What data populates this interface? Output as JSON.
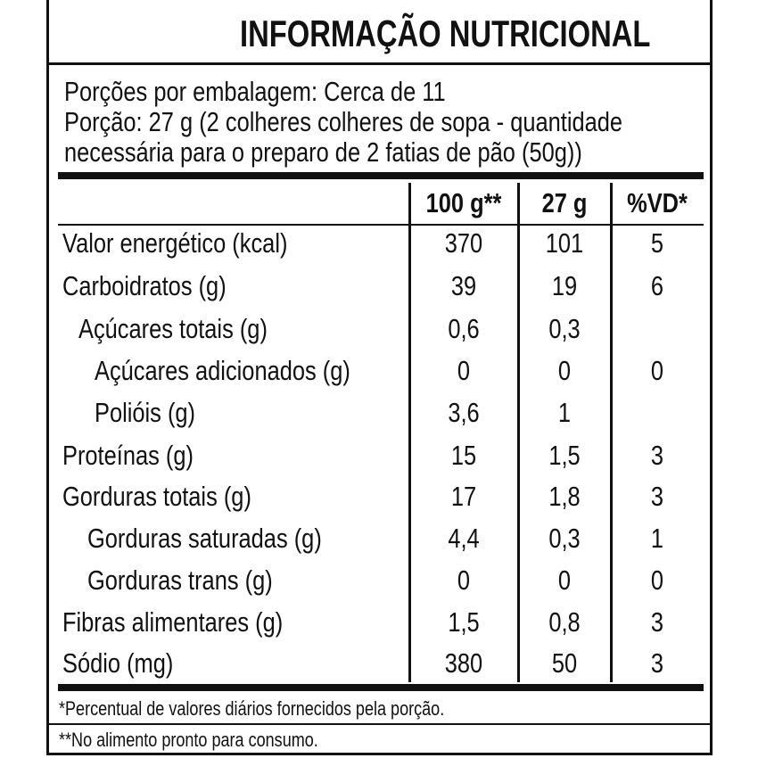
{
  "title": "INFORMAÇÃO NUTRICIONAL",
  "serving": [
    "Porções por embalagem: Cerca de 11",
    "Porção: 27 g (2 colheres colheres de sopa - quantidade",
    "necessária para o preparo de 2 fatias de pão (50g))"
  ],
  "table": {
    "header": [
      "100 g**",
      "27 g",
      "%VD*"
    ],
    "rows": [
      [
        "Valor energético (kcal)",
        "370",
        "101",
        "5"
      ],
      [
        "Carboidratos (g)",
        "39",
        "19",
        "6"
      ],
      [
        "Açúcares totais (g)",
        "0,6",
        "0,3",
        null
      ],
      [
        "Açúcares adicionados (g)",
        "0",
        "0",
        "0"
      ],
      [
        "Polióis (g)",
        "3,6",
        "1",
        null
      ],
      [
        "Proteínas (g)",
        "15",
        "1,5",
        "3"
      ],
      [
        "Gorduras totais (g)",
        "17",
        "1,8",
        "3"
      ],
      [
        "Gorduras saturadas (g)",
        "4,4",
        "0,3",
        "1"
      ],
      [
        "Gorduras trans (g)",
        "0",
        "0",
        "0"
      ],
      [
        "Fibras alimentares (g)",
        "1,5",
        "0,8",
        "3"
      ],
      [
        "Sódio (mg)",
        "380",
        "50",
        "3"
      ]
    ]
  },
  "footnotes": [
    "*Percentual de valores diários fornecidos pela porção.",
    "**No alimento pronto para consumo."
  ]
}
